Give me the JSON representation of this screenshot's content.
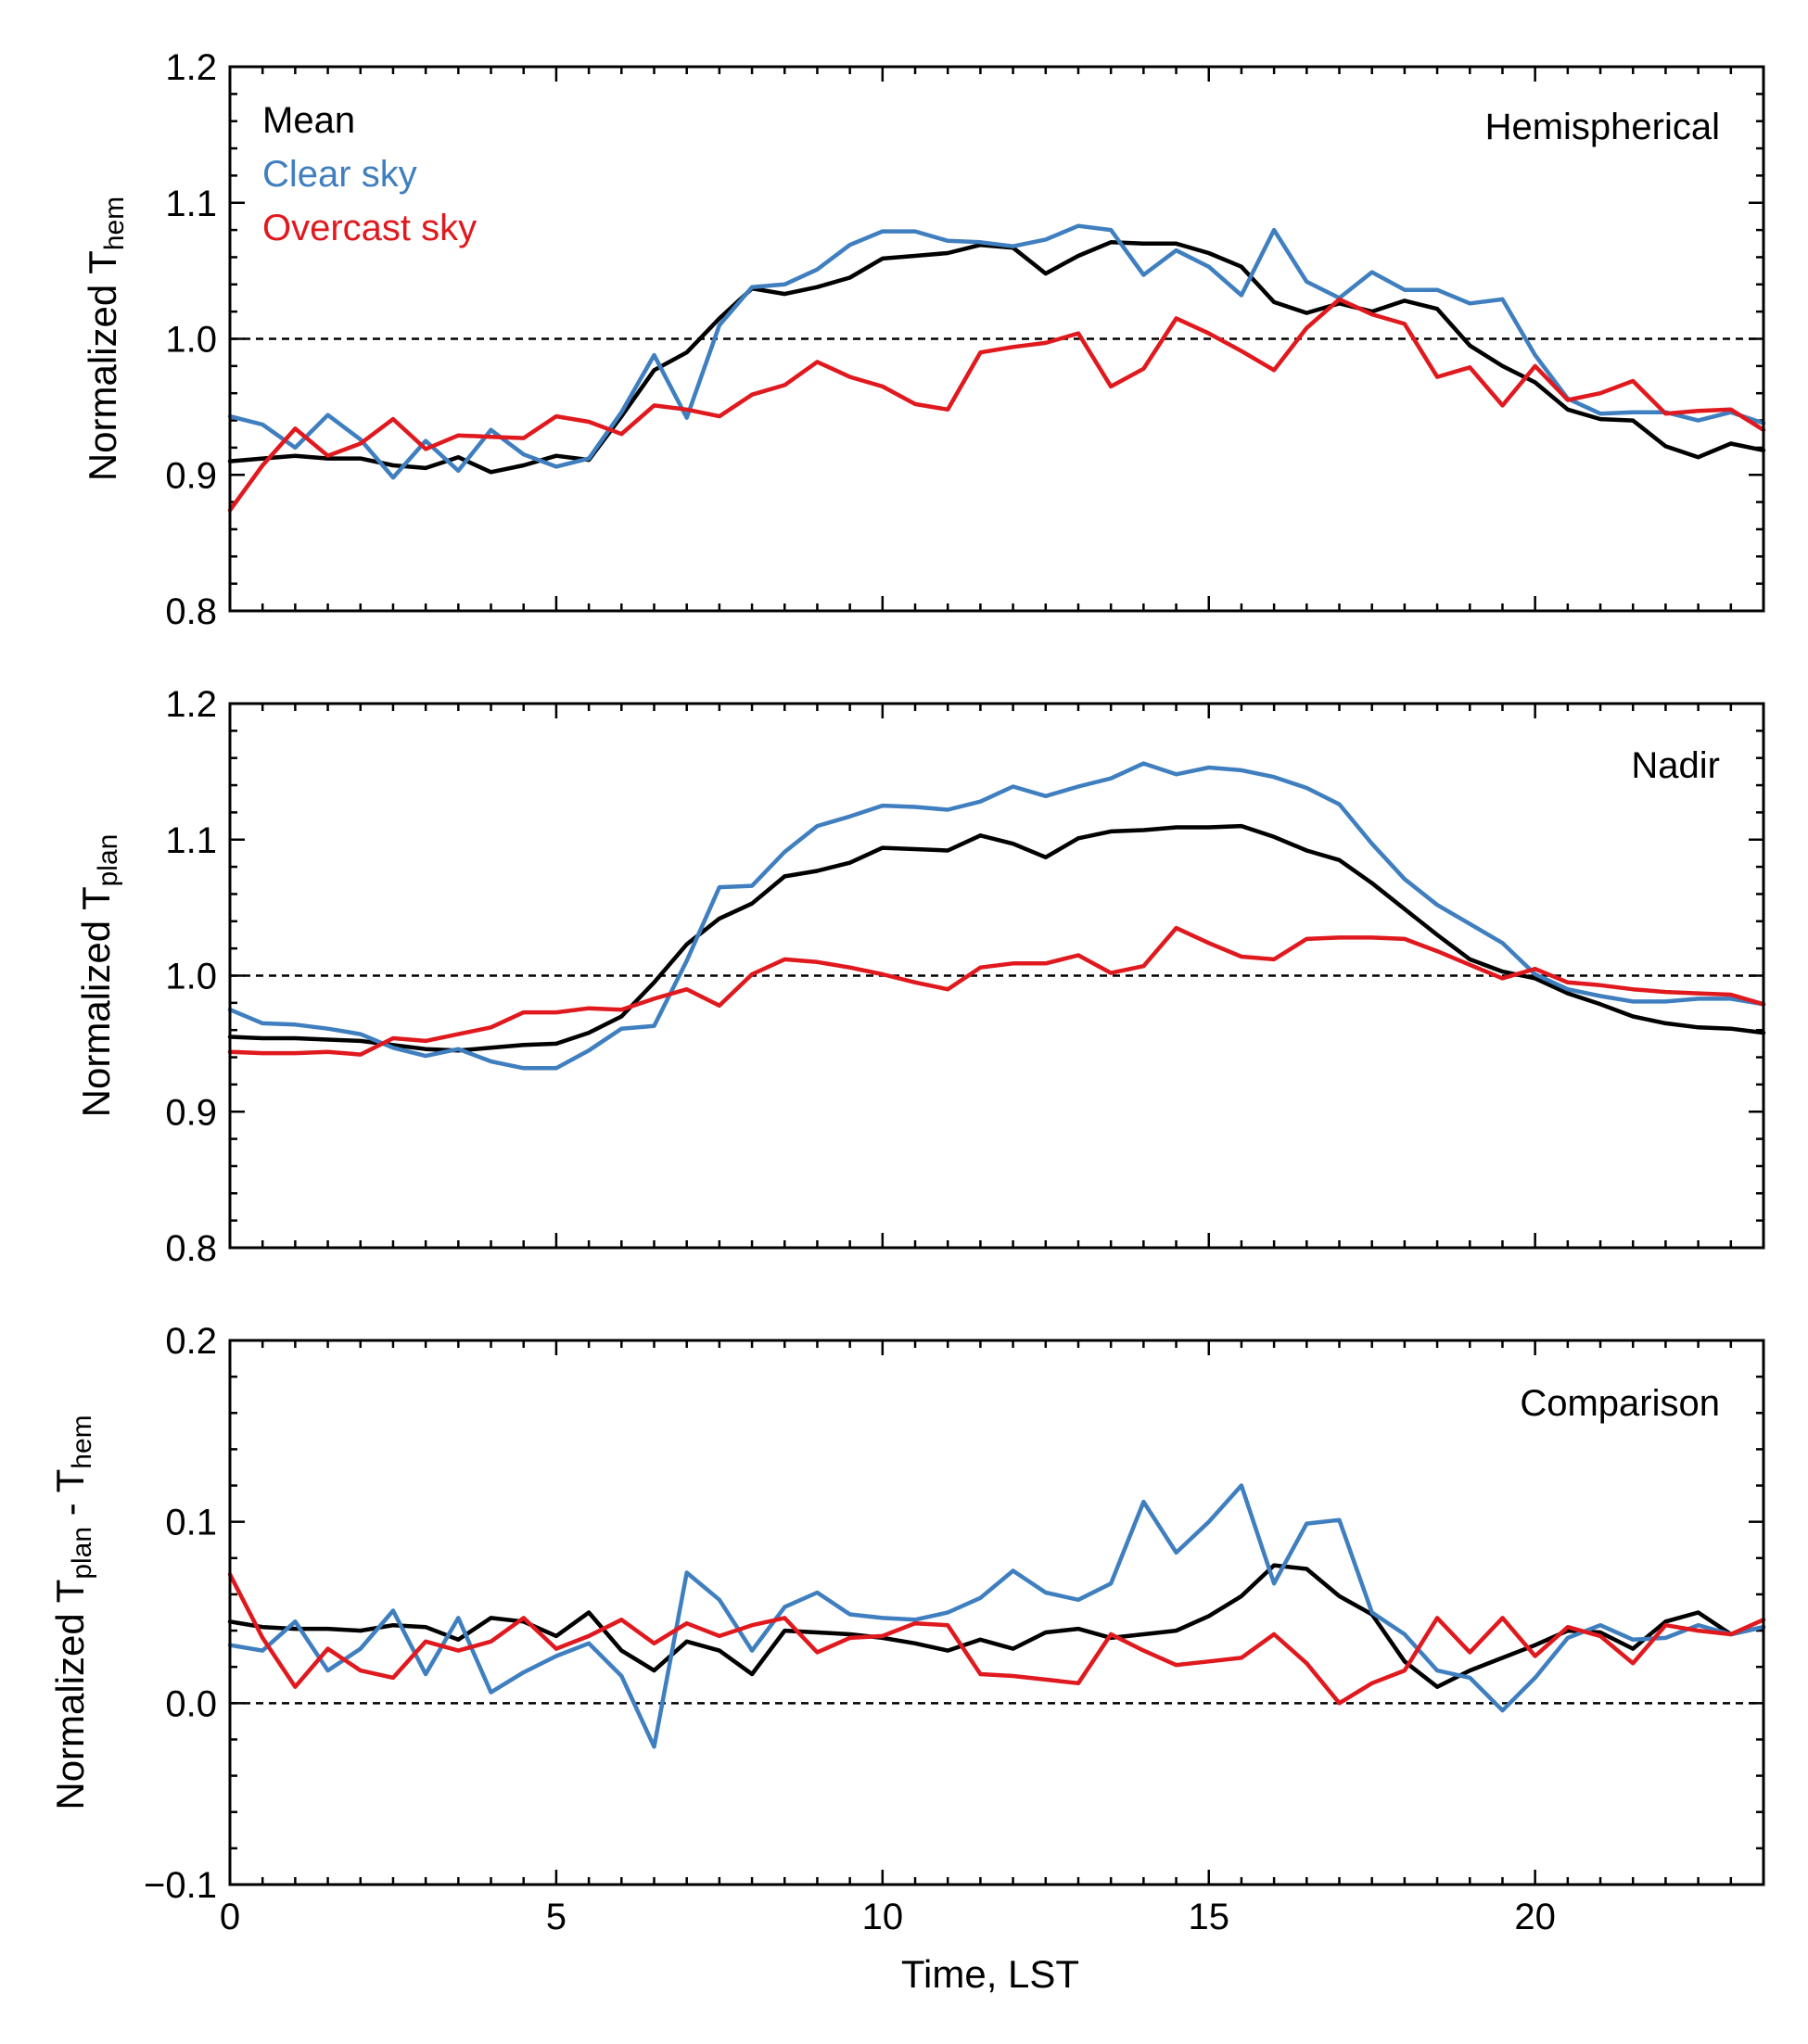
{
  "chart_data": [
    {
      "type": "line",
      "panel_title": "Hemispherical",
      "ylabel_main": "Normalized T",
      "ylabel_sub": "hem",
      "ylim": [
        0.8,
        1.2
      ],
      "yticks": [
        "0.8",
        "0.9",
        "1.0",
        "1.1",
        "1.2"
      ],
      "ytick_values": [
        0.8,
        0.9,
        1.0,
        1.1,
        1.2
      ],
      "reference_line": 1.0,
      "legend": [
        {
          "label": "Mean",
          "color": "#000000"
        },
        {
          "label": "Clear sky",
          "color": "#3f7fbf"
        },
        {
          "label": "Overcast sky",
          "color": "#e0191e"
        }
      ],
      "series": [
        {
          "name": "Mean",
          "color": "#000000",
          "values": [
            0.91,
            0.912,
            0.914,
            0.912,
            0.912,
            0.907,
            0.905,
            0.913,
            0.902,
            0.907,
            0.914,
            0.911,
            0.943,
            0.977,
            0.99,
            1.015,
            1.037,
            1.033,
            1.038,
            1.045,
            1.059,
            1.061,
            1.063,
            1.069,
            1.067,
            1.048,
            1.061,
            1.071,
            1.07,
            1.07,
            1.063,
            1.053,
            1.027,
            1.019,
            1.026,
            1.02,
            1.028,
            1.022,
            0.995,
            0.98,
            0.968,
            0.948,
            0.941,
            0.94,
            0.921,
            0.913,
            0.923,
            0.918
          ]
        },
        {
          "name": "Clear sky",
          "color": "#3f7fbf",
          "values": [
            0.943,
            0.937,
            0.92,
            0.944,
            0.926,
            0.898,
            0.925,
            0.903,
            0.933,
            0.915,
            0.906,
            0.912,
            0.946,
            0.988,
            0.942,
            1.01,
            1.038,
            1.04,
            1.051,
            1.069,
            1.079,
            1.079,
            1.072,
            1.071,
            1.068,
            1.073,
            1.083,
            1.08,
            1.047,
            1.065,
            1.053,
            1.032,
            1.08,
            1.042,
            1.03,
            1.049,
            1.036,
            1.036,
            1.026,
            1.029,
            0.988,
            0.956,
            0.945,
            0.946,
            0.946,
            0.94,
            0.946,
            0.938
          ]
        },
        {
          "name": "Overcast sky",
          "color": "#e0191e",
          "values": [
            0.874,
            0.907,
            0.934,
            0.914,
            0.923,
            0.941,
            0.919,
            0.929,
            0.928,
            0.927,
            0.943,
            0.939,
            0.93,
            0.951,
            0.948,
            0.943,
            0.959,
            0.966,
            0.983,
            0.972,
            0.965,
            0.952,
            0.948,
            0.99,
            0.994,
            0.997,
            1.004,
            0.965,
            0.978,
            1.015,
            1.004,
            0.991,
            0.977,
            1.008,
            1.029,
            1.018,
            1.011,
            0.972,
            0.979,
            0.951,
            0.98,
            0.955,
            0.96,
            0.969,
            0.945,
            0.947,
            0.948,
            0.933
          ]
        }
      ]
    },
    {
      "type": "line",
      "panel_title": "Nadir",
      "ylabel_main": "Normalized T",
      "ylabel_sub": "plan",
      "ylim": [
        0.8,
        1.2
      ],
      "yticks": [
        "0.8",
        "0.9",
        "1.0",
        "1.1",
        "1.2"
      ],
      "ytick_values": [
        0.8,
        0.9,
        1.0,
        1.1,
        1.2
      ],
      "reference_line": 1.0,
      "series": [
        {
          "name": "Mean",
          "color": "#000000",
          "values": [
            0.955,
            0.954,
            0.954,
            0.953,
            0.952,
            0.949,
            0.946,
            0.945,
            0.947,
            0.949,
            0.95,
            0.958,
            0.97,
            0.995,
            1.023,
            1.042,
            1.053,
            1.073,
            1.077,
            1.083,
            1.094,
            1.093,
            1.092,
            1.103,
            1.097,
            1.087,
            1.101,
            1.106,
            1.107,
            1.109,
            1.109,
            1.11,
            1.102,
            1.092,
            1.085,
            1.068,
            1.049,
            1.03,
            1.012,
            1.003,
            0.998,
            0.987,
            0.979,
            0.97,
            0.965,
            0.962,
            0.961,
            0.958
          ]
        },
        {
          "name": "Clear sky",
          "color": "#3f7fbf",
          "values": [
            0.975,
            0.965,
            0.964,
            0.961,
            0.957,
            0.947,
            0.941,
            0.946,
            0.937,
            0.932,
            0.932,
            0.945,
            0.961,
            0.963,
            1.011,
            1.065,
            1.066,
            1.091,
            1.11,
            1.117,
            1.125,
            1.124,
            1.122,
            1.128,
            1.139,
            1.132,
            1.139,
            1.145,
            1.156,
            1.148,
            1.153,
            1.151,
            1.146,
            1.138,
            1.126,
            1.097,
            1.071,
            1.052,
            1.038,
            1.024,
            1.001,
            0.99,
            0.985,
            0.981,
            0.981,
            0.983,
            0.983,
            0.979
          ]
        },
        {
          "name": "Overcast sky",
          "color": "#e0191e",
          "values": [
            0.944,
            0.943,
            0.943,
            0.944,
            0.942,
            0.954,
            0.952,
            0.957,
            0.962,
            0.973,
            0.973,
            0.976,
            0.975,
            0.983,
            0.99,
            0.978,
            1.001,
            1.012,
            1.01,
            1.006,
            1.001,
            0.995,
            0.99,
            1.006,
            1.009,
            1.009,
            1.015,
            1.002,
            1.007,
            1.035,
            1.024,
            1.014,
            1.012,
            1.027,
            1.028,
            1.028,
            1.027,
            1.018,
            1.008,
            0.998,
            1.005,
            0.995,
            0.993,
            0.99,
            0.988,
            0.987,
            0.986,
            0.979
          ]
        }
      ]
    },
    {
      "type": "line",
      "panel_title": "Comparison",
      "ylabel_main": "Normalized T",
      "ylabel_sub": "plan",
      "ylabel_mid": " - T",
      "ylabel_sub2": "hem",
      "xlabel": "Time, LST",
      "xlim": [
        0,
        23.5
      ],
      "xticks": [
        "0",
        "5",
        "10",
        "15",
        "20"
      ],
      "xtick_values": [
        0,
        5,
        10,
        15,
        20
      ],
      "ylim": [
        -0.1,
        0.2
      ],
      "yticks": [
        "−0.1",
        "0.0",
        "0.1",
        "0.2"
      ],
      "ytick_values": [
        -0.1,
        0.0,
        0.1,
        0.2
      ],
      "reference_line": 0.0,
      "series": [
        {
          "name": "Mean",
          "color": "#000000",
          "values": [
            0.045,
            0.042,
            0.041,
            0.041,
            0.04,
            0.043,
            0.042,
            0.035,
            0.047,
            0.045,
            0.037,
            0.05,
            0.029,
            0.018,
            0.034,
            0.029,
            0.016,
            0.04,
            0.039,
            0.038,
            0.036,
            0.033,
            0.029,
            0.035,
            0.03,
            0.039,
            0.041,
            0.036,
            0.038,
            0.04,
            0.048,
            0.059,
            0.076,
            0.074,
            0.059,
            0.049,
            0.023,
            0.009,
            0.018,
            0.025,
            0.032,
            0.04,
            0.039,
            0.03,
            0.045,
            0.05,
            0.038,
            0.042
          ]
        },
        {
          "name": "Clear sky",
          "color": "#3f7fbf",
          "values": [
            0.032,
            0.029,
            0.045,
            0.018,
            0.03,
            0.051,
            0.016,
            0.047,
            0.006,
            0.017,
            0.026,
            0.033,
            0.015,
            -0.024,
            0.072,
            0.057,
            0.029,
            0.053,
            0.061,
            0.049,
            0.047,
            0.046,
            0.05,
            0.058,
            0.073,
            0.061,
            0.057,
            0.066,
            0.111,
            0.083,
            0.1,
            0.12,
            0.066,
            0.099,
            0.101,
            0.05,
            0.038,
            0.018,
            0.014,
            -0.004,
            0.014,
            0.036,
            0.043,
            0.035,
            0.036,
            0.043,
            0.038,
            0.042
          ]
        },
        {
          "name": "Overcast sky",
          "color": "#e0191e",
          "values": [
            0.071,
            0.036,
            0.009,
            0.03,
            0.018,
            0.014,
            0.034,
            0.029,
            0.034,
            0.047,
            0.03,
            0.037,
            0.046,
            0.033,
            0.044,
            0.037,
            0.043,
            0.047,
            0.028,
            0.036,
            0.037,
            0.044,
            0.043,
            0.016,
            0.015,
            0.013,
            0.011,
            0.038,
            0.029,
            0.021,
            0.023,
            0.025,
            0.038,
            0.022,
            0.0,
            0.011,
            0.018,
            0.047,
            0.028,
            0.047,
            0.026,
            0.042,
            0.037,
            0.022,
            0.043,
            0.04,
            0.038,
            0.046
          ]
        }
      ]
    }
  ]
}
